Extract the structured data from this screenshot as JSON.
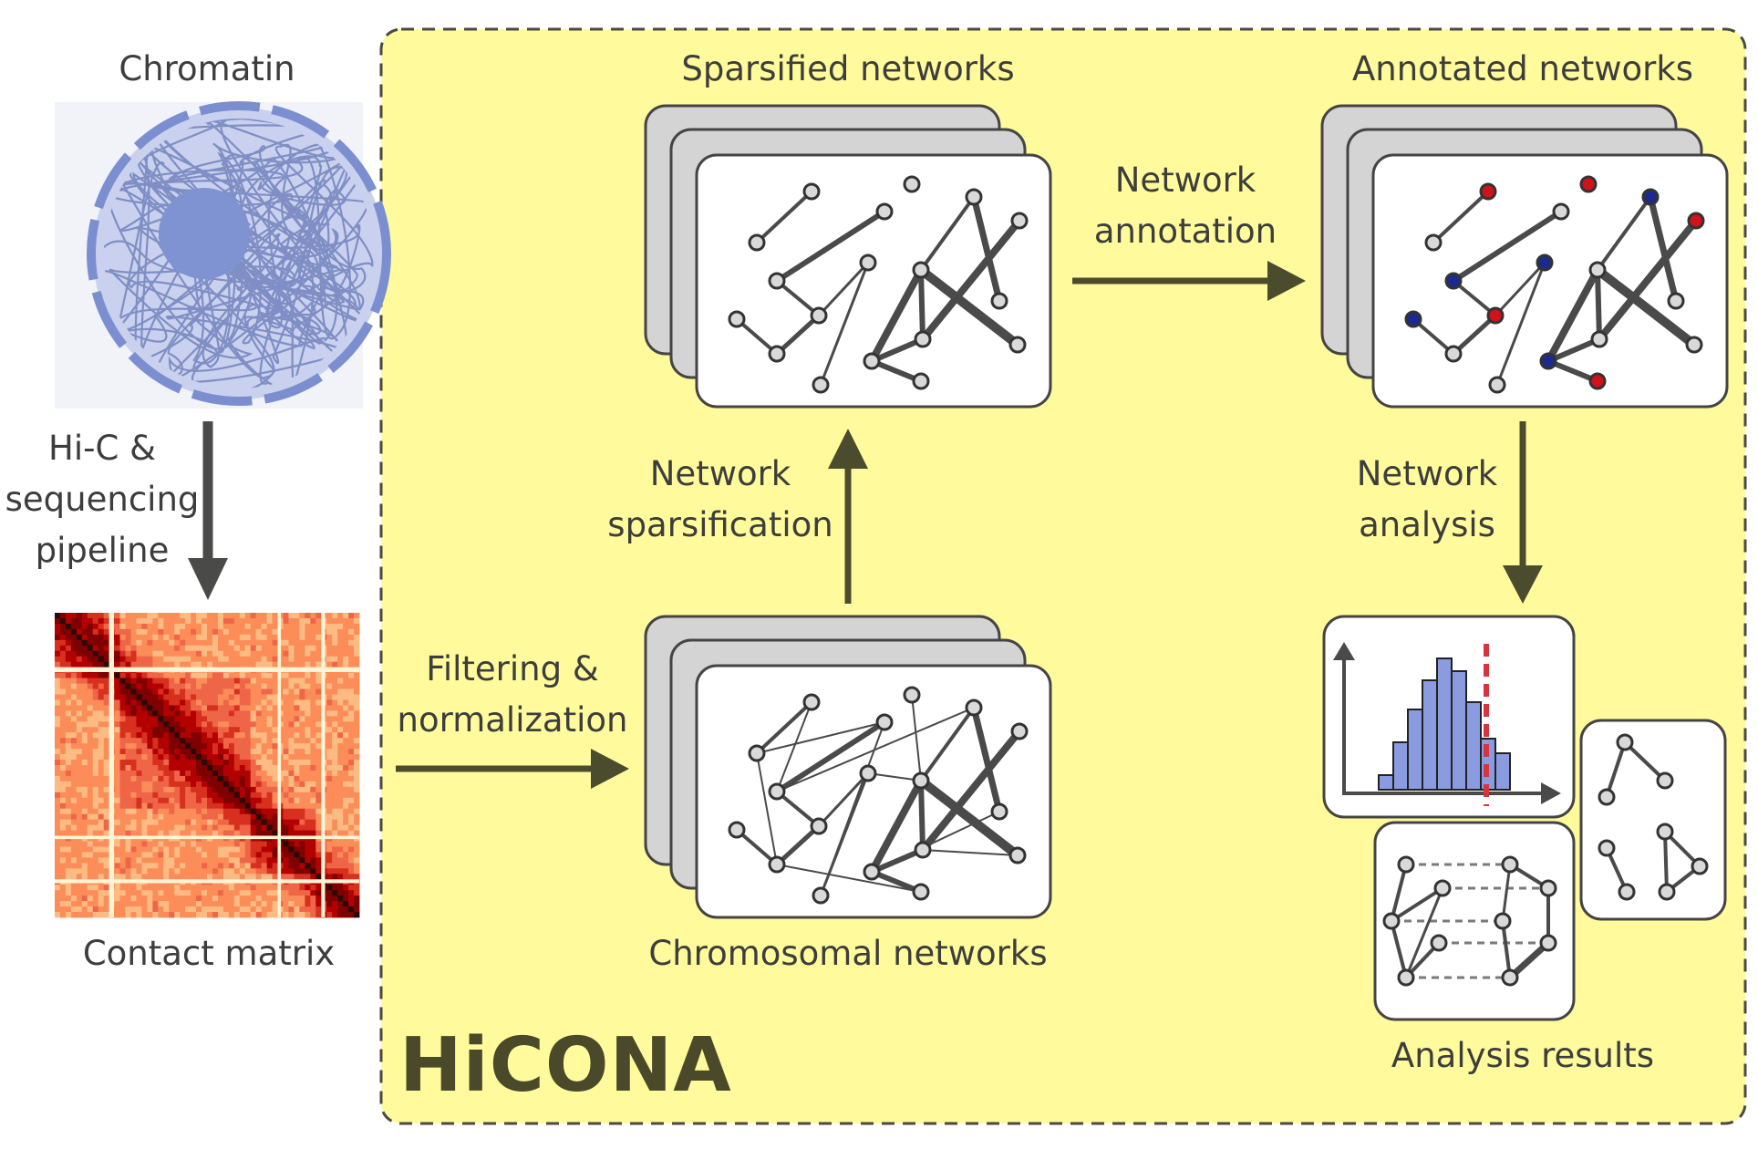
{
  "left_pipeline": {
    "chromatin_label": "Chromatin",
    "hic_label_lines": [
      "Hi-C &",
      "sequencing",
      "pipeline"
    ],
    "contact_matrix_label": "Contact matrix"
  },
  "hicona": {
    "title": "HiCONA",
    "filtering_lines": [
      "Filtering &",
      "normalization"
    ],
    "chromosomal_label": "Chromosomal networks",
    "sparsification_lines": [
      "Network",
      "sparsification"
    ],
    "sparsified_label": "Sparsified networks",
    "annotation_lines": [
      "Network",
      "annotation"
    ],
    "annotated_label": "Annotated networks",
    "analysis_lines": [
      "Network",
      "analysis"
    ],
    "results_label": "Analysis results"
  },
  "colors": {
    "panel_fill": "#fffb9c",
    "arrow": "#4b4b2e",
    "node_red": "#d0121b",
    "node_blue": "#1b2a8f",
    "hist_bar": "#8b9be0",
    "threshold": "#d8343d"
  }
}
